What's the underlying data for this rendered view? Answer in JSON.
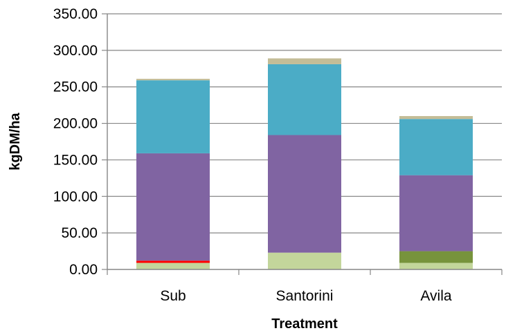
{
  "chart_data": {
    "type": "bar",
    "stacked": true,
    "categories": [
      "Sub",
      "Santorini",
      "Avila"
    ],
    "series": [
      {
        "color": "#C3D69B",
        "values": [
          9,
          23,
          9
        ]
      },
      {
        "color": "#77933C",
        "values": [
          0,
          0,
          16
        ]
      },
      {
        "color": "#FF0000",
        "values": [
          3,
          0,
          0
        ]
      },
      {
        "color": "#8064A2",
        "values": [
          147,
          161,
          104
        ]
      },
      {
        "color": "#4BACC6",
        "values": [
          100,
          97,
          77
        ]
      },
      {
        "color": "#C4BD97",
        "values": [
          2,
          8,
          4
        ]
      }
    ],
    "xlabel": "Treatment",
    "ylabel": "kgDM/ha",
    "ylim": [
      0,
      350
    ],
    "yticks": [
      "0.00",
      "50.00",
      "100.00",
      "150.00",
      "200.00",
      "250.00",
      "300.00",
      "350.00"
    ],
    "grid": true,
    "legend": "none",
    "gridline_color": "#868686",
    "axis_color": "#868686"
  }
}
